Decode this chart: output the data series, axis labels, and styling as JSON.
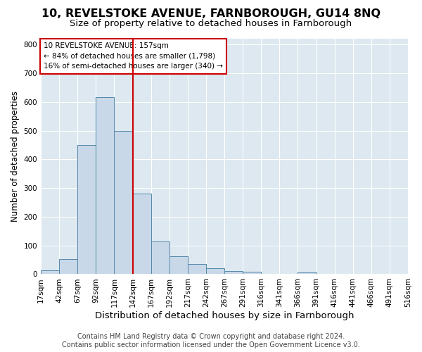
{
  "title": "10, REVELSTOKE AVENUE, FARNBOROUGH, GU14 8NQ",
  "subtitle": "Size of property relative to detached houses in Farnborough",
  "xlabel": "Distribution of detached houses by size in Farnborough",
  "ylabel": "Number of detached properties",
  "bin_labels": [
    "17sqm",
    "42sqm",
    "67sqm",
    "92sqm",
    "117sqm",
    "142sqm",
    "167sqm",
    "192sqm",
    "217sqm",
    "242sqm",
    "267sqm",
    "291sqm",
    "316sqm",
    "341sqm",
    "366sqm",
    "391sqm",
    "416sqm",
    "441sqm",
    "466sqm",
    "491sqm",
    "516sqm"
  ],
  "bar_heights": [
    13,
    52,
    450,
    617,
    498,
    280,
    115,
    62,
    35,
    20,
    11,
    8,
    0,
    0,
    7,
    0,
    0,
    0,
    0,
    0
  ],
  "bar_color": "#c8d8e8",
  "bar_edge_color": "#5588aa",
  "vline_x": 5.0,
  "vline_color": "#cc0000",
  "annotation_text": "10 REVELSTOKE AVENUE: 157sqm\n← 84% of detached houses are smaller (1,798)\n16% of semi-detached houses are larger (340) →",
  "ylim": [
    0,
    820
  ],
  "yticks": [
    0,
    100,
    200,
    300,
    400,
    500,
    600,
    700,
    800
  ],
  "background_color": "#dde8f0",
  "footer_line1": "Contains HM Land Registry data © Crown copyright and database right 2024.",
  "footer_line2": "Contains public sector information licensed under the Open Government Licence v3.0.",
  "title_fontsize": 11.5,
  "subtitle_fontsize": 9.5,
  "xlabel_fontsize": 9.5,
  "ylabel_fontsize": 8.5,
  "tick_fontsize": 7.5,
  "annotation_fontsize": 7.5,
  "footer_fontsize": 7.0
}
